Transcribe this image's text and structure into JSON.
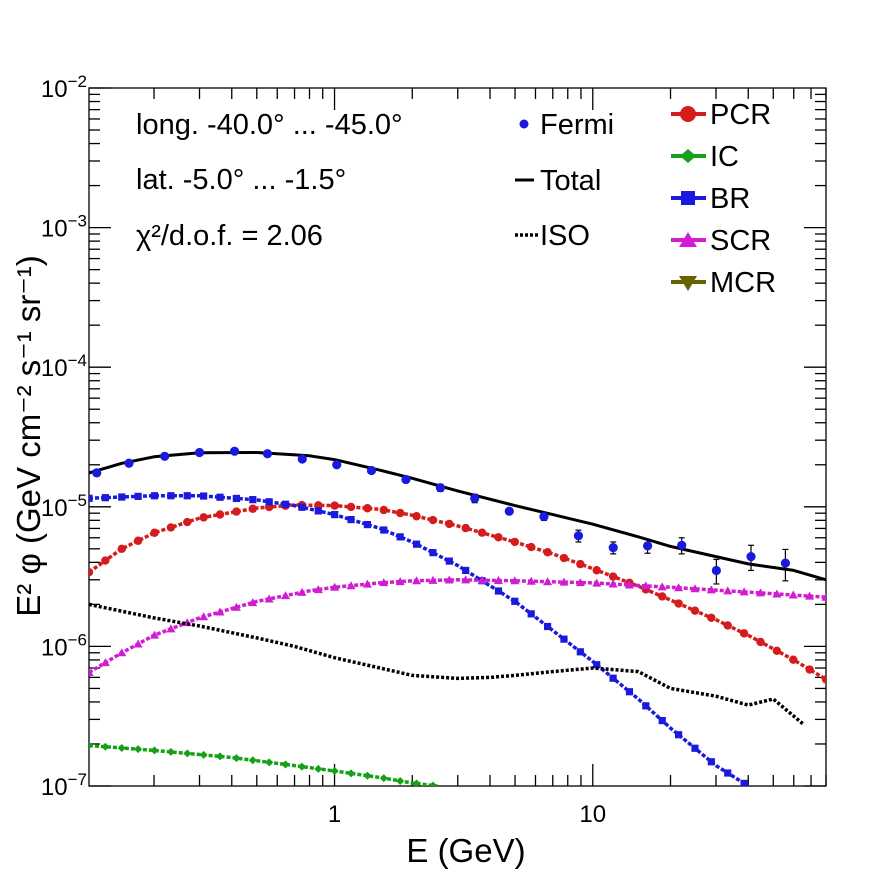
{
  "chart_data": {
    "type": "line",
    "xscale": "log",
    "yscale": "log",
    "xlim": [
      0.112,
      80
    ],
    "ylim": [
      1e-07,
      0.01
    ],
    "xlabel": "E (GeV)",
    "ylabel": "E² φ (GeV cm⁻² s⁻¹ sr⁻¹)",
    "x_ticks": [
      {
        "value": 1,
        "label": "1"
      },
      {
        "value": 10,
        "label": "10"
      }
    ],
    "y_ticks": [
      {
        "value": 1e-07,
        "base": "10",
        "exp": "−7"
      },
      {
        "value": 1e-06,
        "base": "10",
        "exp": "−6"
      },
      {
        "value": 1e-05,
        "base": "10",
        "exp": "−5"
      },
      {
        "value": 0.0001,
        "base": "10",
        "exp": "−4"
      },
      {
        "value": 0.001,
        "base": "10",
        "exp": "−3"
      },
      {
        "value": 0.01,
        "base": "10",
        "exp": "−2"
      }
    ],
    "annotations": [
      "long. -40.0° ... -45.0°",
      "lat. -5.0° ... -1.5°",
      "χ²/d.o.f. = 2.06"
    ],
    "fermi": {
      "name": "Fermi",
      "color": "#1a1adc",
      "points": [
        {
          "x": 0.12,
          "y": 1.75e-05,
          "err": 8e-07
        },
        {
          "x": 0.16,
          "y": 2.05e-05,
          "err": 8e-07
        },
        {
          "x": 0.22,
          "y": 2.3e-05,
          "err": 8e-07
        },
        {
          "x": 0.3,
          "y": 2.45e-05,
          "err": 8e-07
        },
        {
          "x": 0.41,
          "y": 2.5e-05,
          "err": 8e-07
        },
        {
          "x": 0.55,
          "y": 2.4e-05,
          "err": 8e-07
        },
        {
          "x": 0.75,
          "y": 2.2e-05,
          "err": 8e-07
        },
        {
          "x": 1.02,
          "y": 2e-05,
          "err": 8e-07
        },
        {
          "x": 1.39,
          "y": 1.82e-05,
          "err": 8e-07
        },
        {
          "x": 1.89,
          "y": 1.57e-05,
          "err": 8e-07
        },
        {
          "x": 2.57,
          "y": 1.37e-05,
          "err": 8e-07
        },
        {
          "x": 3.49,
          "y": 1.15e-05,
          "err": 8e-07
        },
        {
          "x": 4.75,
          "y": 9.3e-06,
          "err": 4e-07
        },
        {
          "x": 6.47,
          "y": 8.5e-06,
          "err": 5e-07
        },
        {
          "x": 8.8,
          "y": 6.2e-06,
          "err": 6e-07
        },
        {
          "x": 12.0,
          "y": 5.1e-06,
          "err": 5e-07
        },
        {
          "x": 16.3,
          "y": 5.25e-06,
          "err": 6e-07
        },
        {
          "x": 22.1,
          "y": 5.3e-06,
          "err": 7e-07
        },
        {
          "x": 30.1,
          "y": 3.5e-06,
          "err": 7e-07
        },
        {
          "x": 41.0,
          "y": 4.4e-06,
          "err": 9e-07
        },
        {
          "x": 55.7,
          "y": 3.95e-06,
          "err": 1e-06
        }
      ]
    },
    "series": [
      {
        "name": "Total",
        "color": "#000000",
        "style": "solid",
        "marker": "none",
        "points": [
          [
            0.112,
            1.75e-05
          ],
          [
            0.15,
            2.05e-05
          ],
          [
            0.2,
            2.28e-05
          ],
          [
            0.3,
            2.44e-05
          ],
          [
            0.5,
            2.45e-05
          ],
          [
            0.8,
            2.32e-05
          ],
          [
            1.0,
            2.18e-05
          ],
          [
            1.5,
            1.83e-05
          ],
          [
            2,
            1.6e-05
          ],
          [
            3,
            1.3e-05
          ],
          [
            5,
            1.02e-05
          ],
          [
            7,
            8.8e-06
          ],
          [
            10,
            7.5e-06
          ],
          [
            15,
            6.1e-06
          ],
          [
            20,
            5.2e-06
          ],
          [
            30,
            4.4e-06
          ],
          [
            40,
            3.9e-06
          ],
          [
            60,
            3.5e-06
          ],
          [
            80,
            3e-06
          ]
        ]
      },
      {
        "name": "PCR",
        "color": "#d41c1c",
        "style": "dashed",
        "marker": "circle",
        "points": [
          [
            0.112,
            3.4e-06
          ],
          [
            0.15,
            5e-06
          ],
          [
            0.2,
            6.5e-06
          ],
          [
            0.3,
            8.3e-06
          ],
          [
            0.5,
            9.8e-06
          ],
          [
            0.7,
            1.03e-05
          ],
          [
            1.0,
            1.02e-05
          ],
          [
            1.5,
            9.6e-06
          ],
          [
            2,
            8.7e-06
          ],
          [
            3,
            7.3e-06
          ],
          [
            5,
            5.6e-06
          ],
          [
            7,
            4.6e-06
          ],
          [
            10,
            3.6e-06
          ],
          [
            15,
            2.7e-06
          ],
          [
            20,
            2.15e-06
          ],
          [
            30,
            1.55e-06
          ],
          [
            40,
            1.2e-06
          ],
          [
            60,
            8e-07
          ],
          [
            80,
            5.8e-07
          ]
        ]
      },
      {
        "name": "IC",
        "color": "#15a015",
        "style": "dashed",
        "marker": "diamond",
        "points": [
          [
            0.112,
            1.95e-07
          ],
          [
            0.2,
            1.8e-07
          ],
          [
            0.4,
            1.6e-07
          ],
          [
            0.7,
            1.4e-07
          ],
          [
            1.0,
            1.28e-07
          ],
          [
            1.5,
            1.15e-07
          ],
          [
            2.0,
            1.05e-07
          ],
          [
            2.5,
            1e-07
          ]
        ]
      },
      {
        "name": "BR",
        "color": "#1a1adc",
        "style": "dashed",
        "marker": "square",
        "points": [
          [
            0.112,
            1.15e-05
          ],
          [
            0.2,
            1.2e-05
          ],
          [
            0.3,
            1.2e-05
          ],
          [
            0.5,
            1.12e-05
          ],
          [
            0.7,
            1.02e-05
          ],
          [
            1.0,
            8.8e-06
          ],
          [
            1.5,
            7e-06
          ],
          [
            2,
            5.6e-06
          ],
          [
            3,
            3.8e-06
          ],
          [
            5,
            2.1e-06
          ],
          [
            7,
            1.3e-06
          ],
          [
            10,
            7.8e-07
          ],
          [
            15,
            4.2e-07
          ],
          [
            20,
            2.6e-07
          ],
          [
            30,
            1.4e-07
          ],
          [
            40,
            1e-07
          ]
        ]
      },
      {
        "name": "SCR",
        "color": "#d21cd2",
        "style": "dashed",
        "marker": "triangle-up",
        "points": [
          [
            0.112,
            6.5e-07
          ],
          [
            0.15,
            9e-07
          ],
          [
            0.2,
            1.2e-06
          ],
          [
            0.3,
            1.6e-06
          ],
          [
            0.5,
            2.1e-06
          ],
          [
            0.8,
            2.5e-06
          ],
          [
            1.0,
            2.65e-06
          ],
          [
            1.5,
            2.85e-06
          ],
          [
            2,
            2.95e-06
          ],
          [
            3,
            3e-06
          ],
          [
            5,
            2.95e-06
          ],
          [
            10,
            2.85e-06
          ],
          [
            20,
            2.65e-06
          ],
          [
            40,
            2.45e-06
          ],
          [
            80,
            2.25e-06
          ]
        ]
      },
      {
        "name": "MCR",
        "color": "#646400",
        "style": "dashed",
        "marker": "triangle-down",
        "points": []
      },
      {
        "name": "ISO",
        "color": "#000000",
        "style": "dotted",
        "marker": "none",
        "points": [
          [
            0.112,
            2e-06
          ],
          [
            0.2,
            1.6e-06
          ],
          [
            0.3,
            1.4e-06
          ],
          [
            0.5,
            1.15e-06
          ],
          [
            0.7,
            1e-06
          ],
          [
            1.0,
            8.3e-07
          ],
          [
            1.5,
            7e-07
          ],
          [
            2,
            6.2e-07
          ],
          [
            3,
            5.9e-07
          ],
          [
            4,
            6e-07
          ],
          [
            5,
            6.2e-07
          ],
          [
            7,
            6.6e-07
          ],
          [
            10,
            7e-07
          ],
          [
            15,
            6.6e-07
          ],
          [
            20,
            5e-07
          ],
          [
            30,
            4.4e-07
          ],
          [
            40,
            3.8e-07
          ],
          [
            50,
            4.2e-07
          ],
          [
            65,
            2.8e-07
          ]
        ]
      }
    ],
    "legend": {
      "col1": [
        "Fermi",
        "Total",
        "ISO"
      ],
      "col2": [
        "PCR",
        "IC",
        "BR",
        "SCR",
        "MCR"
      ]
    }
  }
}
